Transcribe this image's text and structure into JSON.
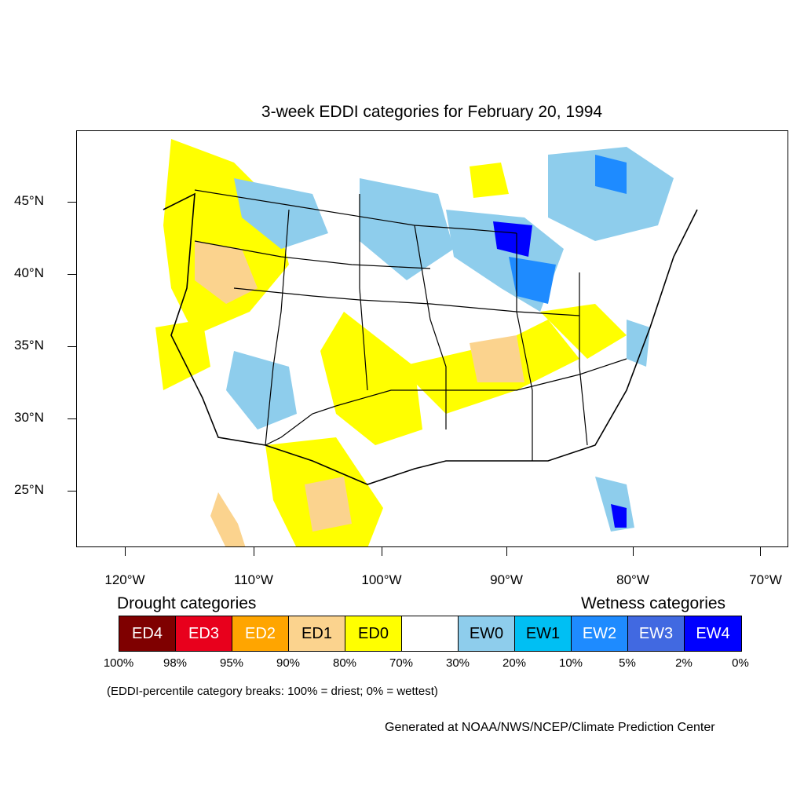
{
  "title": "3-week EDDI categories for February 20, 1994",
  "map": {
    "y_axis_labels": [
      "45°N",
      "40°N",
      "35°N",
      "30°N",
      "25°N"
    ],
    "x_axis_labels": [
      "120°W",
      "110°W",
      "100°W",
      "90°W",
      "80°W",
      "70°W"
    ],
    "colors": {
      "ED4": "#7f0000",
      "ED3": "#e8001c",
      "ED2": "#ffa500",
      "ED1": "#fbd38e",
      "ED0": "#ffff00",
      "NONE": "#ffffff",
      "EW0": "#8ecdec",
      "EW1": "#00bff3",
      "EW2": "#1e8bff",
      "EW3": "#4169e1",
      "EW4": "#0000ff"
    }
  },
  "legend": {
    "drought_heading": "Drought categories",
    "wetness_heading": "Wetness categories",
    "categories": [
      {
        "label": "ED4",
        "color": "#7f0000",
        "text_color": "#ffffff"
      },
      {
        "label": "ED3",
        "color": "#e8001c",
        "text_color": "#ffffff"
      },
      {
        "label": "ED2",
        "color": "#ffa500",
        "text_color": "#ffffff"
      },
      {
        "label": "ED1",
        "color": "#fbd38e",
        "text_color": "#000000"
      },
      {
        "label": "ED0",
        "color": "#ffff00",
        "text_color": "#000000"
      },
      {
        "label": "",
        "color": "#ffffff",
        "text_color": "#000000"
      },
      {
        "label": "EW0",
        "color": "#8ecdec",
        "text_color": "#000000"
      },
      {
        "label": "EW1",
        "color": "#00bff3",
        "text_color": "#000000"
      },
      {
        "label": "EW2",
        "color": "#1e8bff",
        "text_color": "#ffffff"
      },
      {
        "label": "EW3",
        "color": "#4169e1",
        "text_color": "#ffffff"
      },
      {
        "label": "EW4",
        "color": "#0000ff",
        "text_color": "#ffffff"
      }
    ],
    "percent_breaks": [
      "100%",
      "98%",
      "95%",
      "90%",
      "80%",
      "70%",
      "30%",
      "20%",
      "10%",
      "5%",
      "2%",
      "0%"
    ]
  },
  "note": "(EDDI-percentile category breaks: 100% = driest; 0% = wettest)",
  "credit": "Generated at NOAA/NWS/NCEP/Climate Prediction Center"
}
